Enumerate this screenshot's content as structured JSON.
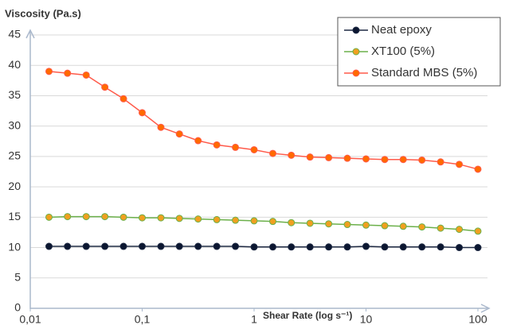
{
  "chart_data": {
    "type": "line",
    "y_label": "Viscosity (Pa.s)",
    "x_label": "Shear Rate (log s⁻¹)",
    "xscale": "log",
    "xlim": [
      0.01,
      100
    ],
    "xticks": [
      {
        "value": 0.01,
        "label": "0,01"
      },
      {
        "value": 0.1,
        "label": "0,1"
      },
      1,
      10,
      100
    ],
    "ylim": [
      0,
      45
    ],
    "yticks": [
      0,
      5,
      10,
      15,
      20,
      25,
      30,
      35,
      40,
      45
    ],
    "grid": true,
    "legend": "top-right",
    "x": [
      0.0147,
      0.0215,
      0.0316,
      0.0464,
      0.0681,
      0.1,
      0.147,
      0.215,
      0.316,
      0.464,
      0.681,
      1,
      1.47,
      2.15,
      3.16,
      4.64,
      6.81,
      10,
      14.7,
      21.5,
      31.6,
      46.4,
      68.1,
      100
    ],
    "series": [
      {
        "name": "Neat epoxy",
        "color": "#1f2a44",
        "marker_color": "#0b1630",
        "values": [
          10.2,
          10.2,
          10.2,
          10.2,
          10.2,
          10.2,
          10.2,
          10.2,
          10.2,
          10.2,
          10.2,
          10.1,
          10.1,
          10.1,
          10.1,
          10.1,
          10.1,
          10.2,
          10.1,
          10.1,
          10.1,
          10.1,
          10.0,
          10.0
        ]
      },
      {
        "name": "XT100 (5%)",
        "color": "#6bb04a",
        "marker_color": "#f0a020",
        "values": [
          15.0,
          15.1,
          15.1,
          15.1,
          15.0,
          14.9,
          14.9,
          14.8,
          14.7,
          14.6,
          14.5,
          14.4,
          14.3,
          14.1,
          14.0,
          13.9,
          13.8,
          13.7,
          13.6,
          13.5,
          13.4,
          13.2,
          13.0,
          12.7
        ]
      },
      {
        "name": "Standard MBS (5%)",
        "color": "#ff5a4a",
        "marker_color": "#ff6a00",
        "values": [
          39.0,
          38.7,
          38.4,
          36.4,
          34.5,
          32.2,
          29.8,
          28.7,
          27.6,
          26.9,
          26.5,
          26.1,
          25.5,
          25.2,
          24.9,
          24.8,
          24.7,
          24.6,
          24.5,
          24.5,
          24.4,
          24.1,
          23.7,
          22.9
        ]
      }
    ]
  }
}
